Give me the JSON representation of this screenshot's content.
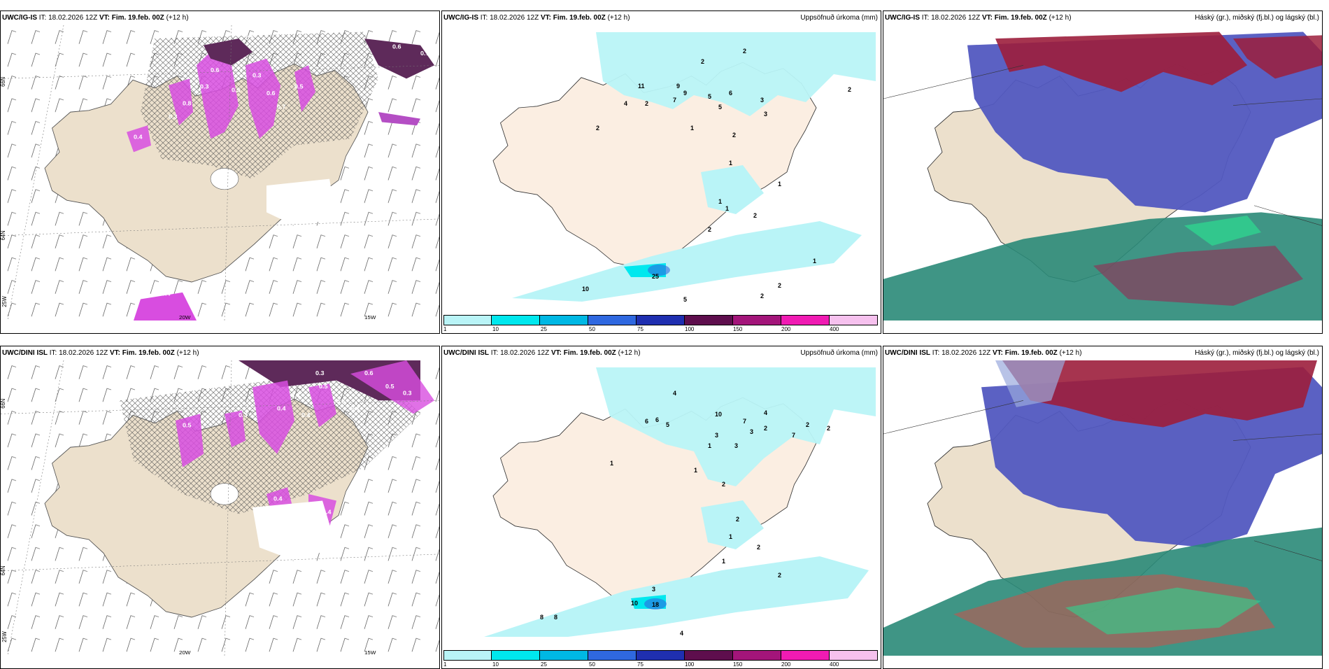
{
  "rows": [
    {
      "model": "UWC/IG-IS",
      "it_label": "IT:",
      "it_value": "18.02.2026 12Z",
      "vt_label": "VT:",
      "vt_value": "Fim. 19.feb. 00Z",
      "lead": "(+12 h)",
      "precip_title": "Uppsöfnuð úrkoma (mm)",
      "cloud_title": "Háský (gr.), miðský (fj.bl.) og lágský (bl.)",
      "wind_values": [
        "0.5",
        "0.6",
        "0.3",
        "0.3",
        "0.5",
        "0.6",
        "0.7",
        "0.8",
        "0.5",
        "0.3",
        "0.4",
        "0.4",
        "0.6",
        "0.7"
      ],
      "precip_values": [
        "2",
        "2",
        "11",
        "9",
        "9",
        "4",
        "2",
        "7",
        "5",
        "5",
        "6",
        "3",
        "3",
        "2",
        "1",
        "2",
        "1",
        "1",
        "1",
        "1",
        "2",
        "2",
        "1",
        "2",
        "2",
        "2",
        "25",
        "10",
        "5"
      ]
    },
    {
      "model": "UWC/DINI ISL",
      "it_label": "IT:",
      "it_value": "18.02.2026 12Z",
      "vt_label": "VT:",
      "vt_value": "Fim. 19.feb. 00Z",
      "lead": "(+12 h)",
      "precip_title": "Uppsöfnuð úrkoma (mm)",
      "cloud_title": "Háský (gr.), miðský (fj.bl.) og lágský (bl.)",
      "wind_values": [
        "0.3",
        "0.5",
        "0.6",
        "0.5",
        "0.3",
        "0.8",
        "0.4",
        "0.6",
        "0.5",
        "0.4",
        "0.4",
        "0.3",
        "0.4",
        "0.4"
      ],
      "precip_values": [
        "4",
        "6",
        "6",
        "5",
        "10",
        "7",
        "3",
        "2",
        "3",
        "1",
        "3",
        "2",
        "1",
        "4",
        "1",
        "2",
        "2",
        "1",
        "2",
        "2",
        "1",
        "3",
        "18",
        "10",
        "8",
        "8",
        "4",
        "7",
        "2"
      ]
    }
  ],
  "axis_labels": {
    "lat66": "66N",
    "lat64": "64N",
    "lon25": "25W",
    "lon20": "20W",
    "lon15": "15W"
  },
  "legend": {
    "ticks": [
      "1",
      "10",
      "25",
      "50",
      "75",
      "100",
      "150",
      "200",
      "400"
    ],
    "colors": [
      "#b9f4f7",
      "#00e8ee",
      "#00b8e4",
      "#2f68e0",
      "#1f2fb0",
      "#5e0e4d",
      "#a3157a",
      "#f01bb3",
      "#f6c1ee"
    ]
  },
  "colors": {
    "land": "#ece0cc",
    "land_precip": "#fbeee2",
    "precip_light": "#b9f4f7",
    "snow_magenta": "#d84de0",
    "dark_purple": "#5e2a5a",
    "cloud_blue": "#5258c0",
    "cloud_red": "#9c1e3c",
    "cloud_green": "#2a8a78"
  }
}
